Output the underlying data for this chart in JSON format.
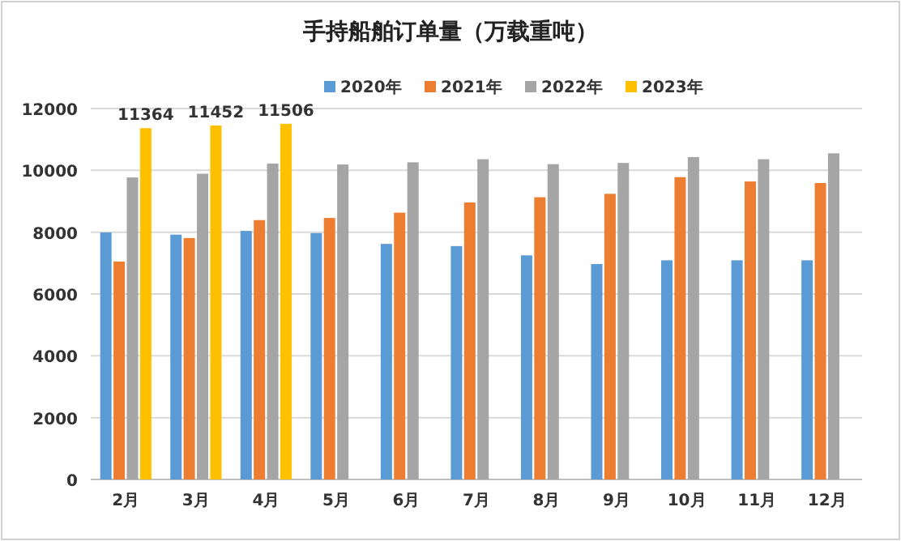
{
  "chart_data": {
    "type": "bar",
    "title": "手持船舶订单量（万载重吨）",
    "categories": [
      "2月",
      "3月",
      "4月",
      "5月",
      "6月",
      "7月",
      "8月",
      "9月",
      "10月",
      "11月",
      "12月"
    ],
    "series": [
      {
        "name": "2020年",
        "color": "#5b9bd5",
        "values": [
          7990,
          7920,
          8040,
          7970,
          7620,
          7550,
          7250,
          6970,
          7090,
          7090,
          7090
        ]
      },
      {
        "name": "2021年",
        "color": "#ed7d31",
        "values": [
          7050,
          7810,
          8390,
          8460,
          8630,
          8960,
          9130,
          9240,
          9780,
          9640,
          9590
        ]
      },
      {
        "name": "2022年",
        "color": "#a5a5a5",
        "values": [
          9770,
          9890,
          10220,
          10190,
          10260,
          10360,
          10200,
          10240,
          10430,
          10360,
          10550
        ]
      },
      {
        "name": "2023年",
        "color": "#ffc000",
        "values": [
          11364,
          11452,
          11506,
          null,
          null,
          null,
          null,
          null,
          null,
          null,
          null
        ],
        "value_labels": [
          "11364",
          "11452",
          "11506",
          null,
          null,
          null,
          null,
          null,
          null,
          null,
          null
        ]
      }
    ],
    "ylim": [
      0,
      12000
    ],
    "yticks": [
      0,
      2000,
      4000,
      6000,
      8000,
      10000,
      12000
    ],
    "grid": "y",
    "legend": "top"
  }
}
